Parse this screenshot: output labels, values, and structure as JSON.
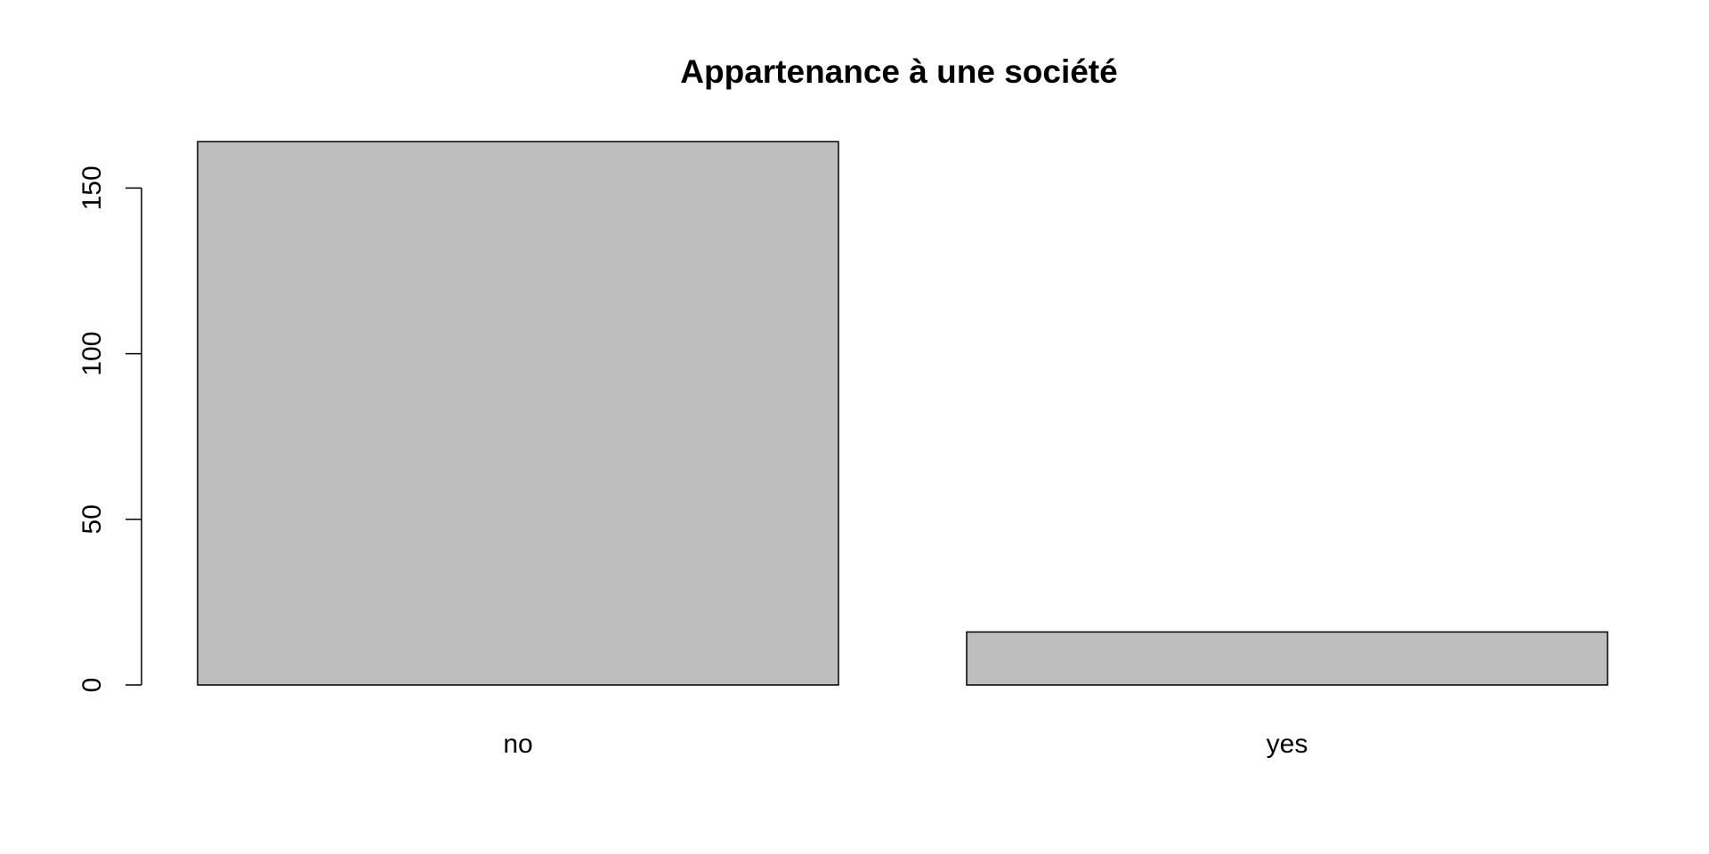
{
  "chart_data": {
    "type": "bar",
    "title": "Appartenance à une société",
    "xlabel": "",
    "ylabel": "",
    "categories": [
      "no",
      "yes"
    ],
    "values": [
      164,
      16
    ],
    "ylim": [
      0,
      164
    ],
    "yticks": [
      0,
      50,
      100,
      150
    ],
    "yticks_labels": [
      "0",
      "50",
      "100",
      "150"
    ],
    "grid": false,
    "legend": "none",
    "colors": {
      "bar_fill": "#bebebe",
      "bar_stroke": "#000000",
      "axis": "#000000",
      "background": "#ffffff"
    }
  }
}
